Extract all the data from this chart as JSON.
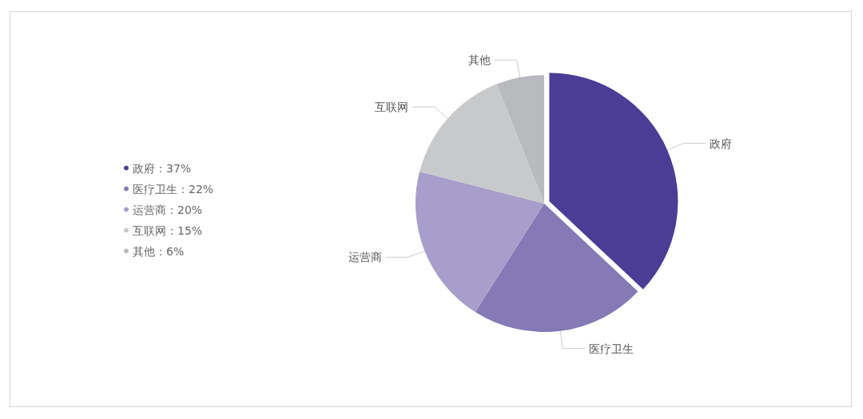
{
  "chart_data": {
    "type": "pie",
    "categories": [
      "政府",
      "医疗卫生",
      "运营商",
      "互联网",
      "其他"
    ],
    "values": [
      37,
      22,
      20,
      15,
      6
    ],
    "value_labels": [
      "：37%",
      "：22%",
      "：20%",
      "：15%",
      "：6%"
    ],
    "colors": [
      "#4b3d96",
      "#857ab6",
      "#a79ecb",
      "#c8c9cb",
      "#b9babe"
    ],
    "legend": "left"
  }
}
